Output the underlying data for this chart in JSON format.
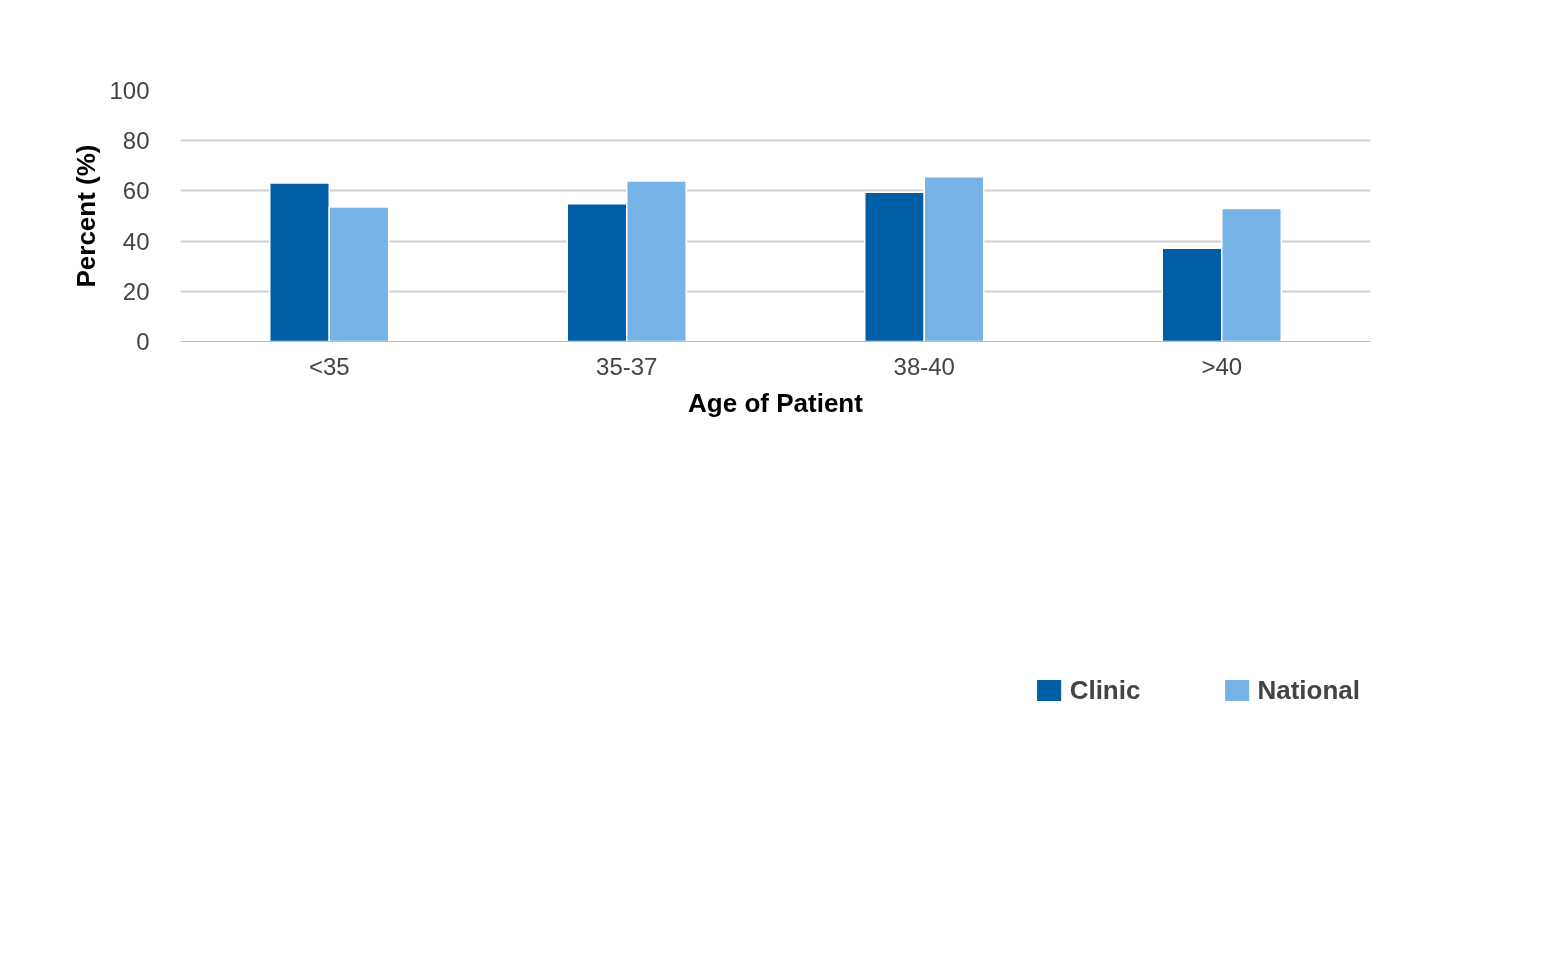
{
  "chart_data": {
    "type": "bar",
    "xlabel": "Age of Patient",
    "ylabel": "Percent (%)",
    "categories": [
      "<35",
      "35-37",
      "38-40",
      ">40"
    ],
    "series": [
      {
        "name": "Clinic",
        "color": "#005ea6",
        "values": [
          63.1,
          54.9,
          59.5,
          37.2
        ]
      },
      {
        "name": "National",
        "color": "#77b3e7",
        "values": [
          53.6,
          63.9,
          65.6,
          53.0
        ]
      }
    ],
    "ylim": [
      0,
      100
    ],
    "yticks": [
      0,
      20,
      40,
      60,
      80,
      100
    ],
    "grid": "y",
    "legend": "bottom"
  }
}
